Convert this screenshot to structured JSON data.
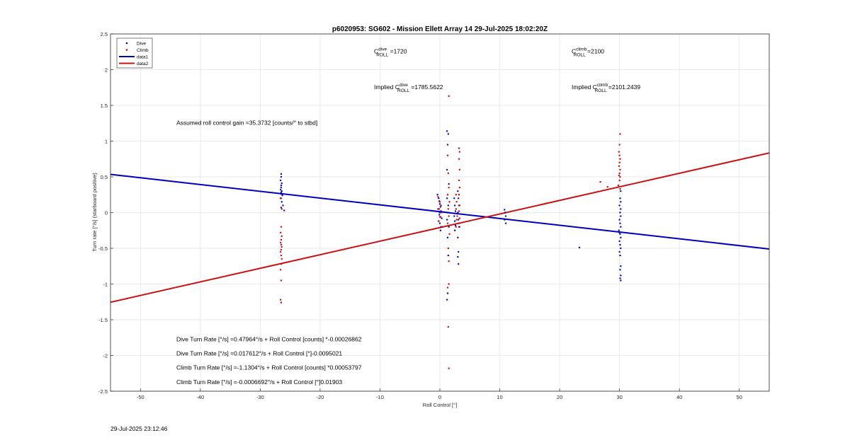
{
  "chart_data": {
    "type": "scatter",
    "title": "p6020953: SG602 - Mission Ellett Array 14 29-Jul-2025 18:02:20Z",
    "xlabel": "Roll Control [°]",
    "ylabel": "Turn rate [°/s] (starboard positive)",
    "xlim": [
      -55,
      55
    ],
    "ylim": [
      -2.5,
      2.5
    ],
    "xticks": [
      -50,
      -40,
      -30,
      -20,
      -10,
      0,
      10,
      20,
      30,
      40,
      50
    ],
    "yticks": [
      -2.5,
      -2,
      -1.5,
      -1,
      -0.5,
      0,
      0.5,
      1,
      1.5,
      2,
      2.5
    ],
    "grid": true,
    "legend_position": "top-left",
    "legend": [
      {
        "label": "Dive",
        "kind": "marker",
        "color": "#0000cc"
      },
      {
        "label": "Climb",
        "kind": "marker",
        "color": "#dd0000"
      },
      {
        "label": "data1",
        "kind": "line",
        "color": "#0000bb"
      },
      {
        "label": "data2",
        "kind": "line",
        "color": "#cc1111"
      }
    ],
    "series": [
      {
        "name": "Dive",
        "type": "scatter",
        "color": "#0000cc",
        "points": [
          [
            -26.5,
            0.54
          ],
          [
            -26.5,
            0.5
          ],
          [
            -26.6,
            0.45
          ],
          [
            -26.4,
            0.41
          ],
          [
            -26.5,
            0.38
          ],
          [
            -26.5,
            0.35
          ],
          [
            -26.6,
            0.32
          ],
          [
            -26.4,
            0.3
          ],
          [
            -26.5,
            0.28
          ],
          [
            -26.5,
            0.26
          ],
          [
            -26.3,
            0.24
          ],
          [
            -26.6,
            0.2
          ],
          [
            -26.4,
            0.15
          ],
          [
            -26.2,
            0.1
          ],
          [
            -26.5,
            0.07
          ],
          [
            -26,
            0.03
          ],
          [
            -0.4,
            0.25
          ],
          [
            -0.2,
            0.2
          ],
          [
            -0.1,
            0.16
          ],
          [
            0,
            0.12
          ],
          [
            0.1,
            0.08
          ],
          [
            -0.3,
            0.05
          ],
          [
            0.2,
            0.02
          ],
          [
            0,
            0
          ],
          [
            -0.1,
            -0.03
          ],
          [
            0.1,
            -0.06
          ],
          [
            0.3,
            -0.08
          ],
          [
            -0.2,
            -0.12
          ],
          [
            0,
            -0.15
          ],
          [
            0.2,
            -0.2
          ],
          [
            0.1,
            -0.25
          ],
          [
            1.2,
            1.14
          ],
          [
            1.4,
            1.1
          ],
          [
            1.3,
            0.95
          ],
          [
            1.2,
            0.6
          ],
          [
            1.5,
            0.4
          ],
          [
            1.2,
            0.2
          ],
          [
            1.4,
            0.1
          ],
          [
            1.3,
            0
          ],
          [
            1.2,
            -0.1
          ],
          [
            1.5,
            -0.2
          ],
          [
            1.3,
            -0.35
          ],
          [
            1.4,
            -0.6
          ],
          [
            1.3,
            -1.13
          ],
          [
            1.2,
            -1.22
          ],
          [
            2.4,
            0.2
          ],
          [
            2.5,
            0.1
          ],
          [
            2.6,
            0.02
          ],
          [
            2.4,
            -0.05
          ],
          [
            2.5,
            -0.12
          ],
          [
            2.6,
            -0.18
          ],
          [
            2.5,
            -0.25
          ],
          [
            3,
            0.3
          ],
          [
            3.1,
            0.2
          ],
          [
            3.2,
            0.1
          ],
          [
            3,
            0
          ],
          [
            3.1,
            -0.1
          ],
          [
            3.2,
            -0.2
          ],
          [
            3,
            -0.35
          ],
          [
            3.1,
            -0.55
          ],
          [
            3,
            -0.62
          ],
          [
            3.1,
            -0.72
          ],
          [
            10.8,
            0.04
          ],
          [
            10.9,
            0
          ],
          [
            11,
            -0.05
          ],
          [
            10.8,
            -0.1
          ],
          [
            11,
            -0.15
          ],
          [
            23.3,
            -0.49
          ],
          [
            30.2,
            0.3
          ],
          [
            30.1,
            0.2
          ],
          [
            30.2,
            0.15
          ],
          [
            30,
            0.1
          ],
          [
            30.2,
            0.05
          ],
          [
            30.1,
            0
          ],
          [
            30.2,
            -0.05
          ],
          [
            30,
            -0.1
          ],
          [
            30.1,
            -0.15
          ],
          [
            30.2,
            -0.2
          ],
          [
            29.9,
            -0.25
          ],
          [
            30,
            -0.28
          ],
          [
            30.1,
            -0.3
          ],
          [
            30.2,
            -0.35
          ],
          [
            30,
            -0.4
          ],
          [
            30.1,
            -0.45
          ],
          [
            30.2,
            -0.5
          ],
          [
            30,
            -0.55
          ],
          [
            30.1,
            -0.6
          ],
          [
            30.2,
            -0.75
          ],
          [
            30.1,
            -0.8
          ],
          [
            30.2,
            -0.88
          ],
          [
            30.1,
            -0.92
          ],
          [
            30.2,
            -0.95
          ]
        ]
      },
      {
        "name": "Climb",
        "type": "scatter",
        "color": "#dd0000",
        "points": [
          [
            -26.5,
            0.2
          ],
          [
            -26.4,
            0.05
          ],
          [
            -26.5,
            -0.2
          ],
          [
            -26.6,
            -0.28
          ],
          [
            -26.4,
            -0.33
          ],
          [
            -26.5,
            -0.38
          ],
          [
            -26.6,
            -0.42
          ],
          [
            -26.5,
            -0.45
          ],
          [
            -26.4,
            -0.48
          ],
          [
            -26.5,
            -0.52
          ],
          [
            -26.6,
            -0.55
          ],
          [
            -26.5,
            -0.6
          ],
          [
            -26.4,
            -0.65
          ],
          [
            -26.5,
            -0.72
          ],
          [
            -26.6,
            -0.8
          ],
          [
            -26.5,
            -0.95
          ],
          [
            -26.6,
            -1.22
          ],
          [
            -26.5,
            -1.26
          ],
          [
            -0.3,
            0.22
          ],
          [
            0,
            0.15
          ],
          [
            0.2,
            0.1
          ],
          [
            -0.1,
            0.05
          ],
          [
            0.3,
            0
          ],
          [
            0,
            -0.06
          ],
          [
            -0.2,
            -0.12
          ],
          [
            0.4,
            -0.2
          ],
          [
            1.5,
            1.63
          ],
          [
            1.3,
            0.8
          ],
          [
            1.4,
            0.55
          ],
          [
            1.5,
            0.35
          ],
          [
            1.3,
            0.25
          ],
          [
            1.6,
            0.15
          ],
          [
            1.4,
            0.05
          ],
          [
            1.5,
            -0.05
          ],
          [
            1.3,
            -0.15
          ],
          [
            1.6,
            -0.3
          ],
          [
            1.4,
            -0.5
          ],
          [
            1.5,
            -0.68
          ],
          [
            1.3,
            -1.05
          ],
          [
            1.5,
            -1.0
          ],
          [
            1.4,
            -1.6
          ],
          [
            1.5,
            -2.18
          ],
          [
            2.7,
            0.25
          ],
          [
            2.8,
            0.15
          ],
          [
            2.7,
            0.05
          ],
          [
            2.9,
            -0.05
          ],
          [
            2.8,
            -0.1
          ],
          [
            2.7,
            -0.2
          ],
          [
            3.2,
            0.9
          ],
          [
            3.3,
            0.85
          ],
          [
            3.2,
            0.75
          ],
          [
            3.3,
            0.6
          ],
          [
            3.2,
            0.45
          ],
          [
            3.3,
            0.35
          ],
          [
            3.2,
            0.25
          ],
          [
            3.3,
            0.1
          ],
          [
            3.2,
            0.02
          ],
          [
            3.3,
            -0.08
          ],
          [
            3.2,
            -0.15
          ],
          [
            3.3,
            -0.2
          ],
          [
            26.8,
            0.43
          ],
          [
            28,
            0.36
          ],
          [
            30.1,
            1.1
          ],
          [
            30,
            0.95
          ],
          [
            29.9,
            0.85
          ],
          [
            30,
            0.8
          ],
          [
            30.1,
            0.75
          ],
          [
            30,
            0.7
          ],
          [
            29.9,
            0.65
          ],
          [
            30.1,
            0.6
          ],
          [
            30,
            0.55
          ],
          [
            29.9,
            0.52
          ],
          [
            30.1,
            0.5
          ],
          [
            30,
            0.45
          ],
          [
            29.8,
            0.38
          ],
          [
            30.1,
            0.33
          ]
        ]
      },
      {
        "name": "data1",
        "type": "line",
        "color": "#0000bb",
        "x": [
          -55,
          55
        ],
        "y": [
          0.535,
          -0.51
        ]
      },
      {
        "name": "data2",
        "type": "line",
        "color": "#cc1111",
        "x": [
          -55,
          55
        ],
        "y": [
          -1.255,
          0.835
        ]
      }
    ],
    "annotations": [
      {
        "id": "cdive",
        "base": "C",
        "sup": "dive",
        "sub": "ROLL",
        "tail": " =1720",
        "x": -11,
        "y": 2.23
      },
      {
        "id": "cclimb",
        "base": "C",
        "sup": "climb",
        "sub": "ROLL",
        "tail": " =2100",
        "x": 22,
        "y": 2.23
      },
      {
        "id": "implied-dive",
        "base": "Implied C",
        "sup": "dive",
        "sub": "ROLL",
        "tail": " =1785.5622",
        "x": -11,
        "y": 1.73
      },
      {
        "id": "implied-climb",
        "base": "Implied C",
        "sup": "climb",
        "sub": "ROLL",
        "tail": " =2101.2439",
        "x": 22,
        "y": 1.73
      },
      {
        "id": "gain",
        "text": "Assumed roll control gain =35.3732 [counts/° to stbd]",
        "x": -44,
        "y": 1.23
      },
      {
        "id": "eq1",
        "text": "Dive Turn Rate [°/s] =0.47964°/s + Roll Control [counts] *-0.00026862",
        "x": -44,
        "y": -1.8
      },
      {
        "id": "eq2",
        "text": "Dive Turn Rate [°/s] =0.017612°/s + Roll Control [°]-0.0095021",
        "x": -44,
        "y": -2.0
      },
      {
        "id": "eq3",
        "text": "Climb Turn Rate [°/s] =-1.1304°/s + Roll Control [counts] *0.00053797",
        "x": -44,
        "y": -2.2
      },
      {
        "id": "eq4",
        "text": "Climb Turn Rate [°/s] =-0.0006692°/s + Roll Control [°]0.01903",
        "x": -44,
        "y": -2.4
      }
    ]
  },
  "footer": {
    "timestamp": "29-Jul-2025 23:12:46"
  }
}
